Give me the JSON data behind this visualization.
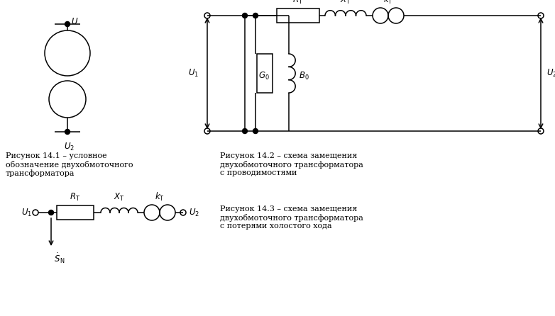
{
  "bg_color": "#ffffff",
  "line_color": "#000000",
  "fig_width": 7.82,
  "fig_height": 4.46,
  "caption1": "Рисунок 14.1 – условное\nобозначение двухобмоточного\nтрансформатора",
  "caption2": "Рисунок 14.2 – схема замещения\nдвухобмоточного трансформатора\nс проводимостями",
  "caption3": "Рисунок 14.3 – схема замещения\nдвухобмоточного трансформатора\nс потерями холостого хода",
  "font_size": 8.0,
  "label_font_size": 8.5
}
